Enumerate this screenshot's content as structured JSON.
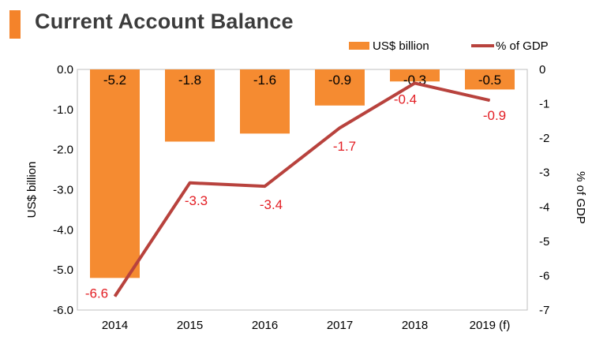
{
  "header": {
    "title": "Current Account Balance",
    "accent_color": "#f4832a"
  },
  "chart_data": {
    "type": "bar",
    "title": "Current Account Balance",
    "categories": [
      "2014",
      "2015",
      "2016",
      "2017",
      "2018",
      "2019 (f)"
    ],
    "series": [
      {
        "name": "US$ billion",
        "kind": "bar",
        "axis": "left",
        "color": "#f58b31",
        "values": [
          -5.2,
          -1.8,
          -1.6,
          -0.9,
          -0.3,
          -0.5
        ],
        "labels": [
          "-5.2",
          "-1.8",
          "-1.6",
          "-0.9",
          "-0.3",
          "-0.5"
        ]
      },
      {
        "name": "% of GDP",
        "kind": "line",
        "axis": "right",
        "color": "#b8423d",
        "values": [
          -6.6,
          -3.3,
          -3.4,
          -1.7,
          -0.4,
          -0.9
        ],
        "labels": [
          "-6.6",
          "-3.3",
          "-3.4",
          "-1.7",
          "-0.4",
          "-0.9"
        ]
      }
    ],
    "left_axis": {
      "label": "US$ billion",
      "range": [
        -6,
        0
      ],
      "ticks": [
        0,
        -1,
        -2,
        -3,
        -4,
        -5,
        -6
      ],
      "tick_labels": [
        "0.0",
        "-1.0",
        "-2.0",
        "-3.0",
        "-4.0",
        "-5.0",
        "-6.0"
      ]
    },
    "right_axis": {
      "label": "% of GDP",
      "range": [
        -7,
        0
      ],
      "ticks": [
        0,
        -1,
        -2,
        -3,
        -4,
        -5,
        -6,
        -7
      ],
      "tick_labels": [
        "0",
        "-1",
        "-2",
        "-3",
        "-4",
        "-5",
        "-6",
        "-7"
      ]
    },
    "line_label_color": "#e31e24",
    "grid": false,
    "legend_position": "top-right"
  }
}
